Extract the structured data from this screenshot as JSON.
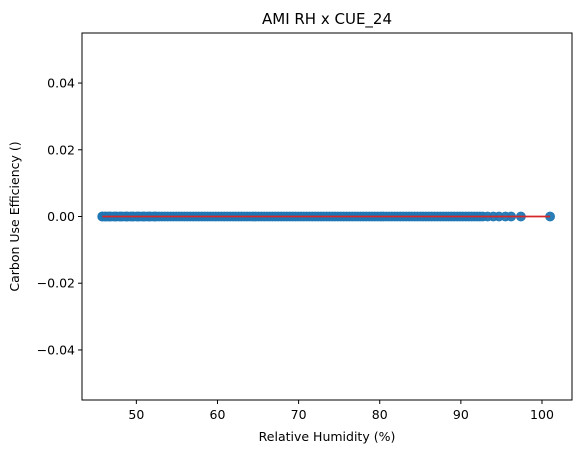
{
  "chart_data": {
    "type": "scatter",
    "title": "AMI RH x CUE_24",
    "xlabel": "Relative Humidity (%)",
    "ylabel": "Carbon Use Efficiency ()",
    "xlim": [
      43.3,
      103.7
    ],
    "ylim": [
      -0.055,
      0.055
    ],
    "x_ticks": [
      50,
      60,
      70,
      80,
      90,
      100
    ],
    "y_ticks": [
      -0.04,
      -0.02,
      0.0,
      0.02,
      0.04
    ],
    "y_tick_labels": [
      "−0.04",
      "−0.02",
      "0.00",
      "0.02",
      "0.04"
    ],
    "grid": false,
    "series": [
      {
        "marker_color": "#1f77b4",
        "x_range": [
          45.8,
          101.0
        ],
        "y": 0.0,
        "isolated_x": [
          45.8,
          46.2,
          46.7,
          47.4,
          48.1,
          48.8,
          49.5,
          50.2,
          50.9,
          51.6,
          52.3,
          93.3,
          94.0,
          94.7,
          95.5,
          96.2,
          97.4,
          101.0
        ]
      }
    ],
    "fit_line": {
      "color": "#d62728",
      "x": [
        45.8,
        101.0
      ],
      "y": [
        0.0,
        0.0
      ]
    }
  }
}
